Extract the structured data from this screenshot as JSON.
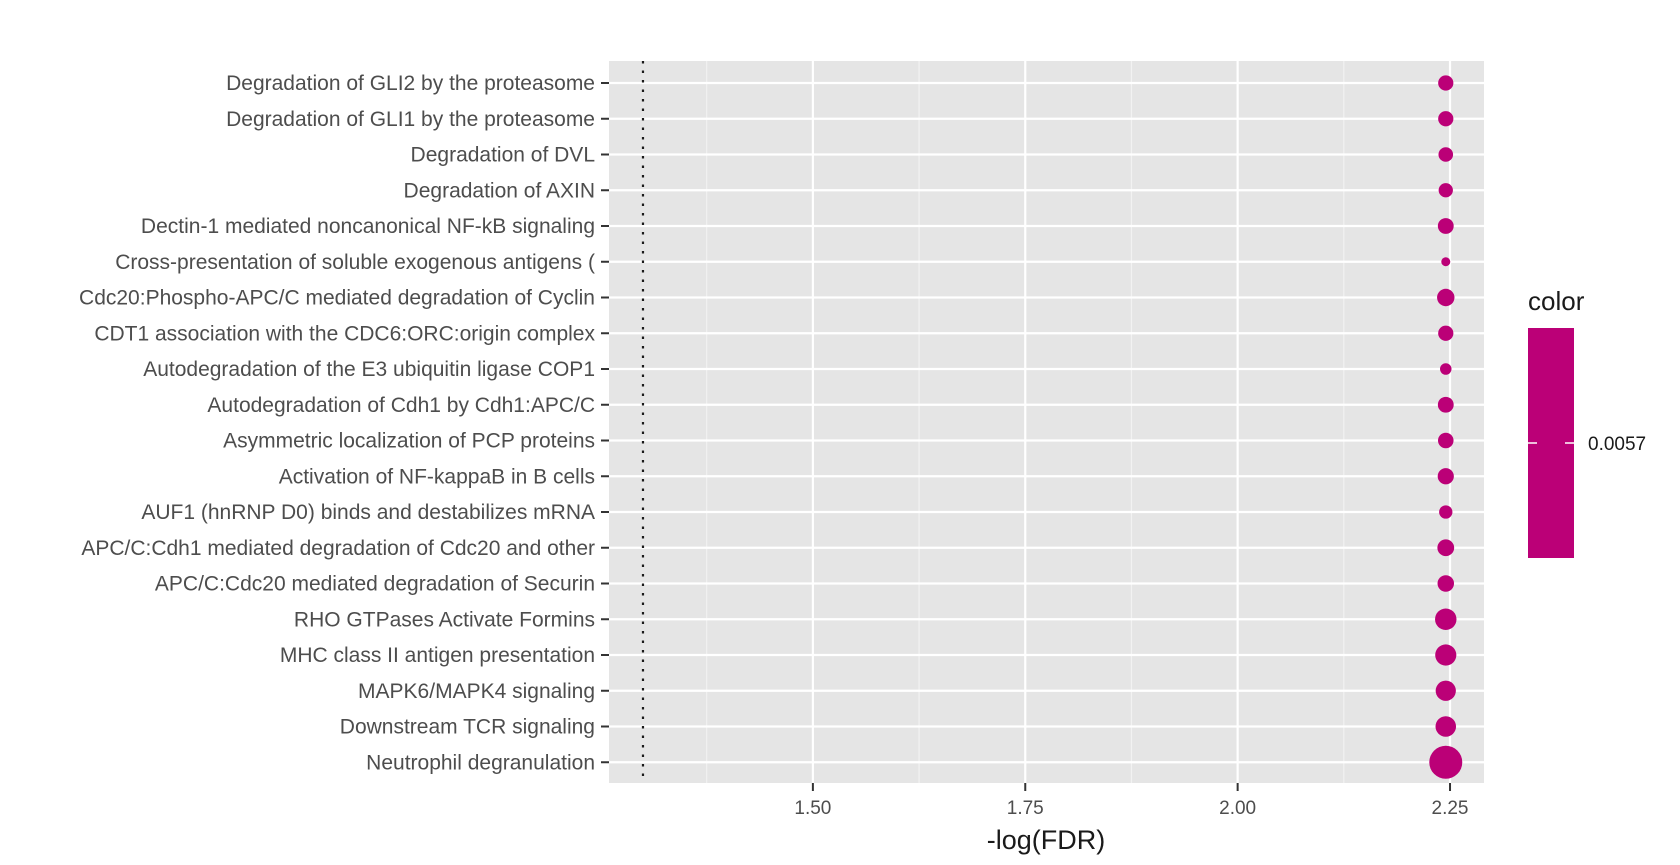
{
  "chart_data": {
    "type": "scatter",
    "title": "",
    "xlabel": "-log(FDR)",
    "ylabel": "",
    "xlim": [
      1.26,
      2.29
    ],
    "x_ticks": [
      1.5,
      1.75,
      2.0,
      2.25
    ],
    "x_tick_labels": [
      "1.50",
      "1.75",
      "2.00",
      "2.25"
    ],
    "reference_line_x": 1.3,
    "reference_line_style": "dotted",
    "grid": true,
    "legend_position": "right",
    "color_legend": {
      "title": "color",
      "labels": [
        "0.0057"
      ],
      "color": "#bb0077"
    },
    "point_color": "#bb0077",
    "categories": [
      "Degradation of GLI2 by the proteasome",
      "Degradation of GLI1 by the proteasome",
      "Degradation of DVL",
      "Degradation of AXIN",
      "Dectin-1 mediated noncanonical NF-kB signaling",
      "Cross-presentation of soluble exogenous antigens (",
      "Cdc20:Phospho-APC/C mediated degradation of Cyclin",
      "CDT1 association with the CDC6:ORC:origin complex",
      "Autodegradation of the E3 ubiquitin ligase COP1",
      "Autodegradation of Cdh1 by Cdh1:APC/C",
      "Asymmetric localization of PCP proteins",
      "Activation of NF-kappaB in B cells",
      "AUF1 (hnRNP D0) binds and destabilizes mRNA",
      "APC/C:Cdh1 mediated degradation of Cdc20 and other",
      "APC/C:Cdc20 mediated degradation of Securin",
      "RHO GTPases Activate Formins",
      "MHC class II antigen presentation",
      "MAPK6/MAPK4 signaling",
      "Downstream TCR signaling",
      "Neutrophil degranulation"
    ],
    "x": [
      2.245,
      2.245,
      2.245,
      2.245,
      2.245,
      2.245,
      2.245,
      2.245,
      2.245,
      2.245,
      2.245,
      2.245,
      2.245,
      2.245,
      2.245,
      2.245,
      2.245,
      2.245,
      2.245,
      2.245
    ],
    "point_size": [
      58,
      58,
      56,
      55,
      60,
      38,
      65,
      58,
      46,
      60,
      59,
      61,
      52,
      63,
      62,
      78,
      77,
      74,
      75,
      115
    ]
  }
}
